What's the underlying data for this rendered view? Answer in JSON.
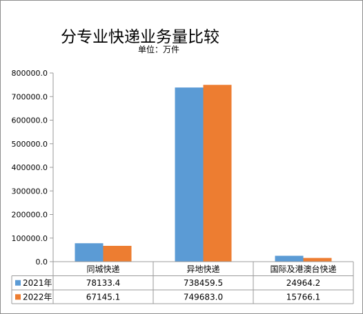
{
  "chart_data": {
    "type": "bar",
    "title": "分专业快递业务量比较",
    "subtitle": "单位：万件",
    "categories": [
      "同城快递",
      "异地快递",
      "国际及港澳台快递"
    ],
    "series": [
      {
        "name": "2021年",
        "values": [
          78133.4,
          738459.5,
          24964.2
        ],
        "labels": [
          "78133.4",
          "738459.5",
          "24964.2"
        ],
        "color": "#5b9bd5"
      },
      {
        "name": "2022年",
        "values": [
          67145.1,
          749683.0,
          15766.1
        ],
        "labels": [
          "67145.1",
          "749683.0",
          "15766.1"
        ],
        "color": "#ed7d31"
      }
    ],
    "ylim": [
      0,
      800000
    ],
    "yticks": [
      0,
      100000,
      200000,
      300000,
      400000,
      500000,
      600000,
      700000,
      800000
    ],
    "ytick_labels": [
      "0.0",
      "100000.0",
      "200000.0",
      "300000.0",
      "400000.0",
      "500000.0",
      "600000.0",
      "700000.0",
      "800000.0"
    ],
    "grid": false,
    "legend": "data-table"
  }
}
